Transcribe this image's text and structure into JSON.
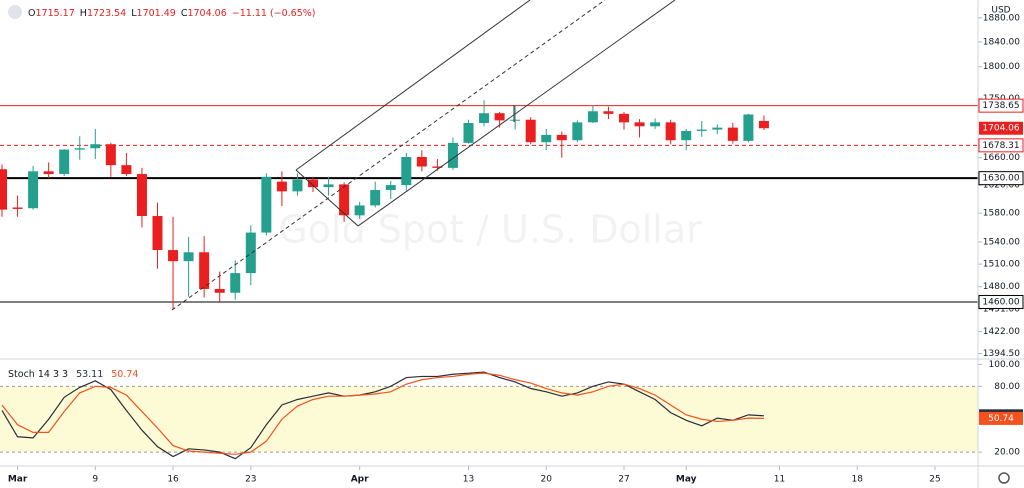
{
  "chart_data": [
    {
      "type": "candlestick",
      "currency": "USD",
      "watermark": "Gold Spot / U.S. Dollar",
      "header": {
        "letters": [
          "O",
          "H",
          "L",
          "C"
        ],
        "change": "−11.11 (−0.65%)"
      },
      "categories": [
        null,
        "Mar",
        null,
        null,
        null,
        null,
        "9",
        null,
        null,
        null,
        null,
        "16",
        null,
        null,
        null,
        null,
        "23",
        null,
        null,
        null,
        null,
        null,
        null,
        "Apr",
        null,
        null,
        null,
        null,
        null,
        null,
        "13",
        null,
        null,
        null,
        null,
        "20",
        null,
        null,
        null,
        null,
        "27",
        null,
        null,
        null,
        "May",
        null,
        null,
        null,
        null,
        null,
        "11",
        null,
        null,
        null,
        null,
        "18",
        null,
        null,
        null,
        null,
        "25",
        null,
        null
      ],
      "open": [
        1643,
        1588,
        1587,
        1640,
        1636,
        1672,
        1674,
        1680,
        1649,
        1636,
        1576,
        1529,
        1514,
        1526,
        1477,
        1472,
        1498,
        1553,
        1625,
        1611,
        1628,
        1617,
        1621,
        1577,
        1591,
        1613,
        1620,
        1661,
        1647,
        1645,
        1682,
        1712,
        1727,
        1716,
        1717,
        1683,
        1694,
        1686,
        1713,
        1730,
        1726,
        1713,
        1707,
        1713,
        1686,
        1700,
        1702,
        1705,
        1685,
        1715.17,
        null,
        null,
        null,
        null,
        null,
        null,
        null,
        null,
        null,
        null,
        null,
        null,
        null
      ],
      "high": [
        1650,
        1605,
        1648,
        1653,
        1673,
        1692,
        1703,
        1682,
        1667,
        1645,
        1595,
        1575,
        1547,
        1548,
        1500,
        1515,
        1563,
        1637,
        1640,
        1637,
        1632,
        1632,
        1624,
        1596,
        1625,
        1626,
        1667,
        1671,
        1658,
        1690,
        1717,
        1747,
        1729,
        1738,
        1721,
        1703,
        1699,
        1716,
        1739,
        1737,
        1729,
        1718,
        1719,
        1717,
        1703,
        1715,
        1710,
        1712,
        1726,
        1723.54,
        null,
        null,
        null,
        null,
        null,
        null,
        null,
        null,
        null,
        null,
        null,
        null,
        null
      ],
      "low": [
        1575,
        1575,
        1585,
        1630,
        1633,
        1657,
        1658,
        1632,
        1633,
        1560,
        1504,
        1451,
        1467,
        1466,
        1460,
        1463,
        1482,
        1549,
        1590,
        1605,
        1610,
        1605,
        1568,
        1572,
        1588,
        1600,
        1612,
        1640,
        1641,
        1642,
        1681,
        1707,
        1705,
        1702,
        1680,
        1671,
        1660,
        1683,
        1712,
        1718,
        1702,
        1690,
        1703,
        1680,
        1671,
        1691,
        1695,
        1681,
        1683,
        1701.49,
        null,
        null,
        null,
        null,
        null,
        null,
        null,
        null,
        null,
        null,
        null,
        null,
        null
      ],
      "close": [
        1585,
        1586,
        1640,
        1636,
        1672,
        1674,
        1680,
        1649,
        1636,
        1576,
        1529,
        1514,
        1526,
        1477,
        1472,
        1498,
        1553,
        1632,
        1611,
        1628,
        1617,
        1621,
        1577,
        1591,
        1613,
        1620,
        1661,
        1647,
        1645,
        1682,
        1712,
        1727,
        1716,
        1717,
        1683,
        1694,
        1686,
        1713,
        1730,
        1726,
        1713,
        1707,
        1713,
        1686,
        1700,
        1702,
        1705,
        1685,
        1725,
        1704.06,
        null,
        null,
        null,
        null,
        null,
        null,
        null,
        null,
        null,
        null,
        null,
        null,
        null
      ],
      "up_color": "#26a08e",
      "down_color": "#ea1f1f",
      "log_scale": true,
      "ylim": [
        1389,
        1910
      ],
      "yticks": [
        {
          "value": 1394.5,
          "label": "1394.50"
        },
        {
          "value": 1422,
          "label": "1422.00"
        },
        {
          "value": 1451,
          "label": "1451.00"
        },
        {
          "value": 1480,
          "label": "1480.00"
        },
        {
          "value": 1510,
          "label": "1510.00"
        },
        {
          "value": 1540,
          "label": "1540.00"
        },
        {
          "value": 1580,
          "label": "1580.00"
        },
        {
          "value": 1620,
          "label": "1620.00"
        },
        {
          "value": 1660,
          "label": "1660.00"
        },
        {
          "value": 1750,
          "label": "1750.00"
        },
        {
          "value": 1800,
          "label": "1800.00"
        },
        {
          "value": 1840,
          "label": "1840.00"
        },
        {
          "value": 1880,
          "label": "1880.00"
        }
      ],
      "levels": [
        {
          "value": 1738.65,
          "color": "#ea1f1f",
          "dash": false
        },
        {
          "value": 1678.31,
          "color": "#ea1f1f",
          "dash": true
        },
        {
          "value": 1630,
          "label": "1630.00",
          "color": "#000000",
          "dash": false
        },
        {
          "value": 1460,
          "label": "1460.00",
          "color": "#000000",
          "dash": false
        }
      ]
    },
    {
      "type": "line",
      "title": "Stoch 14 3 3",
      "band_color": "#fdfbd6",
      "series": [
        {
          "color": "#2a2e39",
          "values": [
            58,
            34,
            33,
            50,
            70,
            79,
            85,
            77,
            58,
            40,
            25,
            16,
            23,
            22,
            20,
            14,
            24,
            45,
            63,
            68,
            71,
            74,
            71,
            72,
            75,
            80,
            88,
            89,
            89,
            91,
            92,
            93,
            88,
            84,
            78,
            75,
            71,
            74,
            80,
            84,
            82,
            75,
            68,
            56,
            49,
            44,
            51,
            49,
            54,
            53.11,
            null,
            null,
            null,
            null,
            null,
            null,
            null,
            null,
            null,
            null,
            null,
            null,
            null
          ]
        },
        {
          "color": "#f4511e",
          "values": [
            63,
            45,
            38,
            38,
            57,
            74,
            80,
            79,
            72,
            57,
            42,
            26,
            21,
            20,
            19,
            18,
            20,
            30,
            50,
            62,
            68,
            71,
            71,
            72,
            73,
            75,
            82,
            86,
            88,
            89,
            91,
            92,
            90,
            86,
            83,
            78,
            74,
            72,
            75,
            80,
            82,
            78,
            72,
            63,
            54,
            50,
            48,
            49,
            51,
            50.74,
            null,
            null,
            null,
            null,
            null,
            null,
            null,
            null,
            null,
            null,
            null,
            null,
            null
          ]
        }
      ],
      "ylim": [
        11,
        104
      ],
      "yticks": [
        {
          "value": 20,
          "label": "20.00"
        },
        {
          "value": 80,
          "label": "80.00"
        },
        {
          "value": 100,
          "label": "100.00"
        }
      ]
    }
  ]
}
